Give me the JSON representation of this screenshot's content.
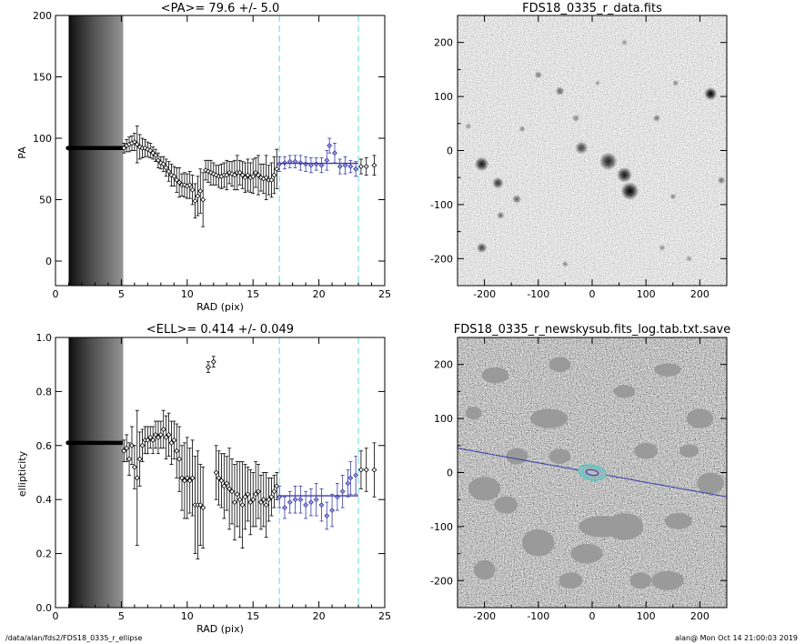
{
  "footer": {
    "path": "/data/alan/fds2/FDS18_0335_r_ellipse",
    "stamp": "alan@  Mon Oct 14 21:00:03 2019"
  },
  "colors": {
    "axis": "#000000",
    "fit": "#3a3aaa",
    "fit_window": "#7fe0e0",
    "contour": "#40c8c8",
    "ellipse_mark": "#3a3aaa"
  },
  "chart_data": [
    {
      "id": "pa",
      "type": "scatter",
      "title": "<PA>=  79.6 +/-   5.0",
      "xlabel": "RAD (pix)",
      "ylabel": "PA",
      "xlim": [
        0,
        25
      ],
      "ylim": [
        -20,
        200
      ],
      "xticks": [
        0,
        5,
        10,
        15,
        20,
        25
      ],
      "yticks": [
        0,
        50,
        100,
        150,
        200
      ],
      "shade_x": [
        1.0,
        5.1
      ],
      "inner_value": 92,
      "fit_window": [
        17,
        23
      ],
      "mean": 79.6,
      "points": [
        [
          5.2,
          92,
          4
        ],
        [
          5.4,
          94,
          5
        ],
        [
          5.6,
          95,
          6
        ],
        [
          5.8,
          96,
          6
        ],
        [
          6.0,
          97,
          7
        ],
        [
          6.2,
          95,
          15
        ],
        [
          6.4,
          93,
          10
        ],
        [
          6.6,
          92,
          8
        ],
        [
          6.8,
          92,
          7
        ],
        [
          7.0,
          91,
          6
        ],
        [
          7.2,
          90,
          6
        ],
        [
          7.4,
          88,
          5
        ],
        [
          7.6,
          86,
          5
        ],
        [
          7.8,
          82,
          6
        ],
        [
          8.0,
          80,
          5
        ],
        [
          8.2,
          79,
          6
        ],
        [
          8.4,
          76,
          7
        ],
        [
          8.6,
          73,
          8
        ],
        [
          8.8,
          70,
          9
        ],
        [
          9.0,
          69,
          8
        ],
        [
          9.2,
          66,
          10
        ],
        [
          9.4,
          64,
          12
        ],
        [
          9.6,
          62,
          9
        ],
        [
          9.8,
          62,
          10
        ],
        [
          10.0,
          61,
          10
        ],
        [
          10.2,
          62,
          11
        ],
        [
          10.4,
          58,
          12
        ],
        [
          10.6,
          49,
          14
        ],
        [
          10.8,
          53,
          16
        ],
        [
          11.0,
          57,
          18
        ],
        [
          11.2,
          50,
          22
        ],
        [
          11.4,
          74,
          8
        ],
        [
          11.6,
          73,
          9
        ],
        [
          11.8,
          72,
          10
        ],
        [
          12.0,
          71,
          9
        ],
        [
          12.2,
          70,
          8
        ],
        [
          12.4,
          69,
          9
        ],
        [
          12.6,
          69,
          10
        ],
        [
          12.8,
          70,
          10
        ],
        [
          13.0,
          70,
          12
        ],
        [
          13.2,
          72,
          9
        ],
        [
          13.4,
          71,
          10
        ],
        [
          13.6,
          70,
          12
        ],
        [
          13.8,
          72,
          14
        ],
        [
          14.0,
          72,
          10
        ],
        [
          14.2,
          70,
          11
        ],
        [
          14.4,
          68,
          12
        ],
        [
          14.6,
          70,
          13
        ],
        [
          14.8,
          68,
          12
        ],
        [
          15.0,
          69,
          14
        ],
        [
          15.2,
          72,
          12
        ],
        [
          15.4,
          70,
          16
        ],
        [
          15.6,
          68,
          11
        ],
        [
          15.8,
          67,
          12
        ],
        [
          16.0,
          68,
          18
        ],
        [
          16.2,
          66,
          12
        ],
        [
          16.4,
          66,
          14
        ],
        [
          16.6,
          70,
          15
        ],
        [
          16.8,
          75,
          16
        ],
        [
          17.0,
          79,
          6
        ],
        [
          17.4,
          80,
          5
        ],
        [
          17.8,
          81,
          5
        ],
        [
          18.2,
          81,
          5
        ],
        [
          18.6,
          80,
          6
        ],
        [
          19.0,
          79,
          6
        ],
        [
          19.4,
          78,
          6
        ],
        [
          19.8,
          79,
          5
        ],
        [
          20.2,
          78,
          6
        ],
        [
          20.6,
          82,
          8
        ],
        [
          20.8,
          94,
          6
        ],
        [
          21.2,
          88,
          8
        ],
        [
          21.6,
          77,
          6
        ],
        [
          22.0,
          78,
          7
        ],
        [
          22.4,
          77,
          5
        ],
        [
          22.8,
          75,
          6
        ],
        [
          23.2,
          77,
          6
        ],
        [
          23.6,
          77,
          7
        ],
        [
          24.2,
          78,
          8
        ]
      ]
    },
    {
      "id": "ell",
      "type": "scatter",
      "title": "<ELL>= 0.414 +/-  0.049",
      "xlabel": "RAD (pix)",
      "ylabel": "ellipticity",
      "xlim": [
        0,
        25
      ],
      "ylim": [
        0.0,
        1.0
      ],
      "xticks": [
        0,
        5,
        10,
        15,
        20,
        25
      ],
      "yticks": [
        0.0,
        0.2,
        0.4,
        0.6,
        0.8,
        1.0
      ],
      "ytick_labels": [
        "0.0",
        "0.2",
        "0.4",
        "0.6",
        "0.8",
        "1.0"
      ],
      "shade_x": [
        1.0,
        5.1
      ],
      "inner_value": 0.61,
      "fit_window": [
        17,
        23
      ],
      "mean": 0.414,
      "points": [
        [
          5.2,
          0.58,
          0.04
        ],
        [
          5.4,
          0.59,
          0.05
        ],
        [
          5.6,
          0.55,
          0.06
        ],
        [
          5.8,
          0.6,
          0.07
        ],
        [
          6.0,
          0.52,
          0.08
        ],
        [
          6.2,
          0.48,
          0.25
        ],
        [
          6.4,
          0.55,
          0.1
        ],
        [
          6.6,
          0.6,
          0.06
        ],
        [
          6.8,
          0.62,
          0.05
        ],
        [
          7.0,
          0.62,
          0.05
        ],
        [
          7.2,
          0.63,
          0.04
        ],
        [
          7.4,
          0.62,
          0.05
        ],
        [
          7.6,
          0.64,
          0.05
        ],
        [
          7.8,
          0.63,
          0.06
        ],
        [
          8.0,
          0.64,
          0.05
        ],
        [
          8.2,
          0.66,
          0.07
        ],
        [
          8.4,
          0.63,
          0.08
        ],
        [
          8.6,
          0.64,
          0.08
        ],
        [
          8.8,
          0.61,
          0.08
        ],
        [
          9.0,
          0.62,
          0.07
        ],
        [
          9.2,
          0.58,
          0.1
        ],
        [
          9.4,
          0.55,
          0.12
        ],
        [
          9.6,
          0.48,
          0.12
        ],
        [
          9.8,
          0.47,
          0.14
        ],
        [
          10.0,
          0.48,
          0.15
        ],
        [
          10.2,
          0.47,
          0.12
        ],
        [
          10.4,
          0.48,
          0.14
        ],
        [
          10.6,
          0.38,
          0.18
        ],
        [
          10.8,
          0.38,
          0.2
        ],
        [
          11.0,
          0.38,
          0.15
        ],
        [
          11.2,
          0.37,
          0.15
        ],
        [
          11.6,
          0.89,
          0.02
        ],
        [
          12.0,
          0.91,
          0.02
        ],
        [
          12.2,
          0.5,
          0.1
        ],
        [
          12.4,
          0.48,
          0.1
        ],
        [
          12.6,
          0.47,
          0.1
        ],
        [
          12.8,
          0.45,
          0.12
        ],
        [
          13.0,
          0.46,
          0.1
        ],
        [
          13.2,
          0.44,
          0.15
        ],
        [
          13.4,
          0.43,
          0.12
        ],
        [
          13.6,
          0.39,
          0.14
        ],
        [
          13.8,
          0.42,
          0.12
        ],
        [
          14.0,
          0.4,
          0.14
        ],
        [
          14.2,
          0.38,
          0.16
        ],
        [
          14.4,
          0.41,
          0.12
        ],
        [
          14.6,
          0.42,
          0.1
        ],
        [
          14.8,
          0.39,
          0.12
        ],
        [
          15.0,
          0.4,
          0.1
        ],
        [
          15.2,
          0.42,
          0.12
        ],
        [
          15.4,
          0.43,
          0.1
        ],
        [
          15.6,
          0.39,
          0.1
        ],
        [
          15.8,
          0.4,
          0.1
        ],
        [
          16.0,
          0.38,
          0.12
        ],
        [
          16.2,
          0.4,
          0.08
        ],
        [
          16.4,
          0.41,
          0.07
        ],
        [
          16.6,
          0.43,
          0.06
        ],
        [
          16.8,
          0.45,
          0.05
        ],
        [
          17.0,
          0.41,
          0.04
        ],
        [
          17.4,
          0.37,
          0.04
        ],
        [
          17.8,
          0.39,
          0.04
        ],
        [
          18.2,
          0.4,
          0.05
        ],
        [
          18.6,
          0.4,
          0.05
        ],
        [
          19.0,
          0.38,
          0.05
        ],
        [
          19.4,
          0.39,
          0.05
        ],
        [
          19.8,
          0.4,
          0.06
        ],
        [
          20.2,
          0.38,
          0.06
        ],
        [
          20.6,
          0.34,
          0.05
        ],
        [
          21.0,
          0.36,
          0.06
        ],
        [
          21.4,
          0.41,
          0.05
        ],
        [
          21.8,
          0.43,
          0.06
        ],
        [
          22.2,
          0.46,
          0.05
        ],
        [
          22.4,
          0.48,
          0.06
        ],
        [
          22.8,
          0.49,
          0.07
        ],
        [
          23.2,
          0.51,
          0.07
        ],
        [
          23.6,
          0.51,
          0.08
        ],
        [
          24.2,
          0.51,
          0.1
        ]
      ]
    },
    {
      "id": "img-top",
      "type": "heatmap",
      "title": "FDS18_0335_r_data.fits",
      "xlim": [
        -250,
        250
      ],
      "ylim": [
        -250,
        250
      ],
      "xticks": [
        -200,
        -100,
        0,
        100,
        200
      ],
      "yticks": [
        -200,
        -100,
        0,
        100,
        200
      ],
      "sources": [
        [
          -20,
          5,
          10,
          0.7
        ],
        [
          30,
          -20,
          14,
          0.85
        ],
        [
          60,
          -45,
          12,
          0.9
        ],
        [
          70,
          -75,
          14,
          1.0
        ],
        [
          -205,
          -25,
          11,
          0.9
        ],
        [
          -175,
          -60,
          9,
          0.75
        ],
        [
          -205,
          -180,
          8,
          0.7
        ],
        [
          220,
          105,
          10,
          1.0
        ],
        [
          -60,
          110,
          7,
          0.55
        ],
        [
          -100,
          140,
          6,
          0.45
        ],
        [
          -30,
          60,
          6,
          0.4
        ],
        [
          120,
          60,
          6,
          0.45
        ],
        [
          -140,
          -90,
          7,
          0.55
        ],
        [
          240,
          -55,
          6,
          0.5
        ],
        [
          130,
          -180,
          5,
          0.4
        ],
        [
          -230,
          45,
          5,
          0.35
        ],
        [
          -130,
          40,
          5,
          0.4
        ],
        [
          -170,
          -120,
          6,
          0.5
        ],
        [
          155,
          125,
          5,
          0.4
        ],
        [
          180,
          -200,
          5,
          0.35
        ],
        [
          60,
          200,
          5,
          0.35
        ],
        [
          -50,
          -210,
          5,
          0.4
        ],
        [
          10,
          125,
          4,
          0.35
        ],
        [
          150,
          -85,
          5,
          0.4
        ]
      ]
    },
    {
      "id": "img-bot",
      "type": "heatmap",
      "title": "FDS18_0335_r_newskysub.fits_log.tab.txt.save",
      "xlim": [
        -250,
        250
      ],
      "ylim": [
        -250,
        250
      ],
      "xticks": [
        -200,
        -100,
        0,
        100,
        200
      ],
      "yticks": [
        -200,
        -100,
        0,
        100,
        200
      ],
      "line": [
        [
          -250,
          45
        ],
        [
          250,
          -45
        ]
      ],
      "masks": [
        [
          -80,
          100,
          35,
          18
        ],
        [
          -180,
          180,
          25,
          15
        ],
        [
          -60,
          200,
          20,
          14
        ],
        [
          60,
          150,
          20,
          12
        ],
        [
          140,
          190,
          25,
          12
        ],
        [
          200,
          100,
          25,
          18
        ],
        [
          -200,
          -30,
          30,
          22
        ],
        [
          -160,
          -60,
          22,
          16
        ],
        [
          -100,
          -130,
          30,
          25
        ],
        [
          -200,
          -180,
          20,
          18
        ],
        [
          -140,
          30,
          20,
          15
        ],
        [
          20,
          -100,
          45,
          20
        ],
        [
          60,
          -100,
          35,
          25
        ],
        [
          -10,
          -150,
          30,
          18
        ],
        [
          160,
          -90,
          25,
          15
        ],
        [
          220,
          -20,
          25,
          20
        ],
        [
          100,
          40,
          22,
          15
        ],
        [
          -60,
          30,
          20,
          14
        ],
        [
          140,
          -200,
          30,
          18
        ],
        [
          -40,
          -200,
          22,
          15
        ],
        [
          90,
          -200,
          20,
          15
        ],
        [
          180,
          40,
          18,
          12
        ],
        [
          -220,
          110,
          15,
          12
        ]
      ]
    }
  ]
}
